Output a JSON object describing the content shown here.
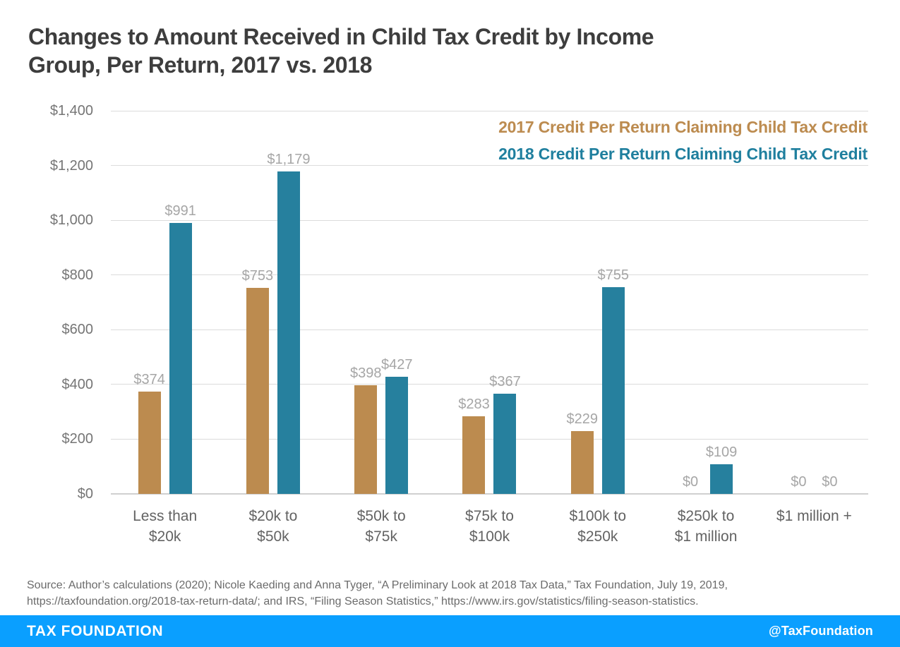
{
  "title": {
    "text": "Changes to Amount Received in Child Tax Credit by Income\nGroup, Per Return, 2017 vs. 2018"
  },
  "legend": {
    "position": "top-right",
    "items": [
      {
        "label": "2017 Credit Per Return Claiming Child Tax Credit",
        "color": "#bc8b4f"
      },
      {
        "label": "2018 Credit Per Return Claiming Child Tax Credit",
        "color": "#1f7f9e"
      }
    ]
  },
  "chart_data": {
    "type": "bar",
    "title": "Changes to Amount Received in Child Tax Credit by Income Group, Per Return, 2017 vs. 2018",
    "categories": [
      "Less than\n$20k",
      "$20k to\n$50k",
      "$50k to\n$75k",
      "$75k to\n$100k",
      "$100k to\n$250k",
      "$250k to\n$1 million",
      "$1 million +"
    ],
    "series": [
      {
        "name": "2017 Credit Per Return Claiming Child Tax Credit",
        "color": "#bc8b4f",
        "values": [
          374,
          753,
          398,
          283,
          229,
          0,
          0
        ],
        "labels": [
          "$374",
          "$753",
          "$398",
          "$283",
          "$229",
          "$0",
          "$0"
        ]
      },
      {
        "name": "2018 Credit Per Return Claiming Child Tax Credit",
        "color": "#26809e",
        "values": [
          991,
          1179,
          427,
          367,
          755,
          109,
          0
        ],
        "labels": [
          "$991",
          "$1,179",
          "$427",
          "$367",
          "$755",
          "$109",
          "$0"
        ]
      }
    ],
    "xlabel": "",
    "ylabel": "",
    "ylim": [
      0,
      1400
    ],
    "grid": true,
    "yticks": [
      {
        "label": "$0",
        "value": 0
      },
      {
        "label": "$200",
        "value": 200
      },
      {
        "label": "$400",
        "value": 400
      },
      {
        "label": "$600",
        "value": 600
      },
      {
        "label": "$800",
        "value": 800
      },
      {
        "label": "$1,000",
        "value": 1000
      },
      {
        "label": "$1,200",
        "value": 1200
      },
      {
        "label": "$1,400",
        "value": 1400
      }
    ]
  },
  "source": {
    "text": "Source: Author’s calculations (2020); Nicole Kaeding and Anna Tyger, “A Preliminary Look at 2018 Tax Data,” Tax Foundation, July 19, 2019,\nhttps://taxfoundation.org/2018-tax-return-data/; and IRS, “Filing Season Statistics,” https://www.irs.gov/statistics/filing-season-statistics."
  },
  "footer": {
    "brand": "TAX FOUNDATION",
    "handle": "@TaxFoundation",
    "bg_color": "#0a9fff"
  }
}
